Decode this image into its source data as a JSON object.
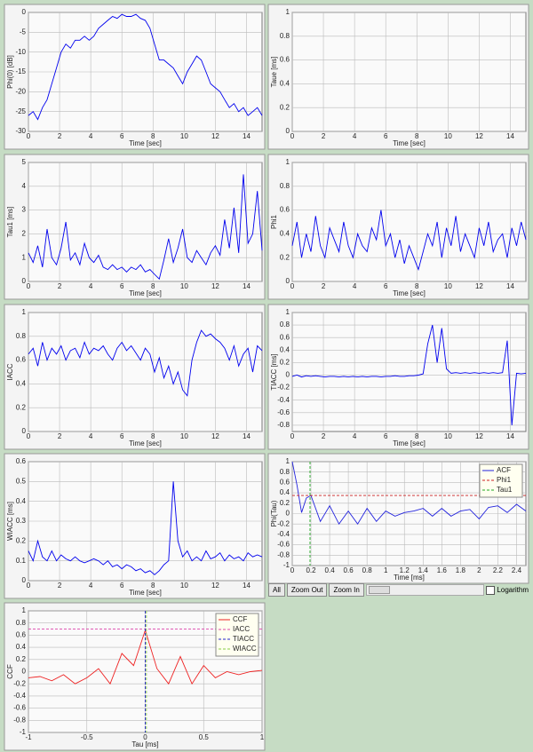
{
  "chart_data": [
    {
      "type": "line",
      "ylabel": "Phi(0) [dB]",
      "xlabel": "Time [sec]",
      "color": "#0000ee",
      "x": [
        0,
        0.3,
        0.6,
        0.9,
        1.2,
        1.5,
        1.8,
        2.1,
        2.4,
        2.7,
        3,
        3.3,
        3.6,
        3.9,
        4.2,
        4.5,
        4.8,
        5.1,
        5.4,
        5.7,
        6,
        6.3,
        6.6,
        6.9,
        7.2,
        7.5,
        7.8,
        8.1,
        8.4,
        8.7,
        9,
        9.3,
        9.6,
        9.9,
        10.2,
        10.5,
        10.8,
        11.1,
        11.4,
        11.7,
        12,
        12.3,
        12.6,
        12.9,
        13.2,
        13.5,
        13.8,
        14.1,
        14.4,
        14.7,
        15
      ],
      "values": [
        -26,
        -25,
        -27,
        -24,
        -22,
        -18,
        -14,
        -10,
        -8,
        -9,
        -7,
        -7,
        -6,
        -7,
        -6,
        -4,
        -3,
        -2,
        -1,
        -1.5,
        -0.5,
        -1,
        -1,
        -0.5,
        -1.5,
        -2,
        -4,
        -8,
        -12,
        -12,
        -13,
        -14,
        -16,
        -18,
        -15,
        -13,
        -11,
        -12,
        -15,
        -18,
        -19,
        -20,
        -22,
        -24,
        -23,
        -25,
        -24,
        -26,
        -25,
        -24,
        -26
      ],
      "xlim": [
        0,
        15
      ],
      "xticks": [
        0,
        2,
        4,
        6,
        8,
        10,
        12,
        14
      ],
      "ylim": [
        -30,
        0
      ],
      "yticks": [
        -30,
        -25,
        -20,
        -15,
        -10,
        -5,
        0
      ],
      "grid": true
    },
    {
      "type": "line",
      "ylabel": "Taue [ms]",
      "xlabel": "Time [sec]",
      "color": "#0000ee",
      "xlim": [
        0,
        15
      ],
      "xticks": [
        0,
        2,
        4,
        6,
        8,
        10,
        12,
        14
      ],
      "ylim": [
        0,
        1
      ],
      "yticks": [
        0,
        0.2,
        0.4,
        0.6,
        0.8,
        1
      ],
      "grid": true
    },
    {
      "type": "line",
      "ylabel": "Tau1 [ms]",
      "xlabel": "Time [sec]",
      "color": "#0000ee",
      "x": [
        0,
        0.3,
        0.6,
        0.9,
        1.2,
        1.5,
        1.8,
        2.1,
        2.4,
        2.7,
        3,
        3.3,
        3.6,
        3.9,
        4.2,
        4.5,
        4.8,
        5.1,
        5.4,
        5.7,
        6,
        6.3,
        6.6,
        6.9,
        7.2,
        7.5,
        7.8,
        8.1,
        8.4,
        8.7,
        9,
        9.3,
        9.6,
        9.9,
        10.2,
        10.5,
        10.8,
        11.1,
        11.4,
        11.7,
        12,
        12.3,
        12.6,
        12.9,
        13.2,
        13.5,
        13.8,
        14.1,
        14.4,
        14.7,
        15
      ],
      "values": [
        1.2,
        0.8,
        1.5,
        0.6,
        2.2,
        1.0,
        0.7,
        1.4,
        2.5,
        0.9,
        1.2,
        0.7,
        1.6,
        1.0,
        0.8,
        1.1,
        0.6,
        0.5,
        0.7,
        0.5,
        0.6,
        0.4,
        0.6,
        0.5,
        0.7,
        0.4,
        0.5,
        0.3,
        0.1,
        0.9,
        1.8,
        0.8,
        1.4,
        2.2,
        1.0,
        0.8,
        1.3,
        1.0,
        0.7,
        1.2,
        1.5,
        1.1,
        2.6,
        1.4,
        3.1,
        1.2,
        4.5,
        1.6,
        2.0,
        3.8,
        1.3
      ],
      "xlim": [
        0,
        15
      ],
      "xticks": [
        0,
        2,
        4,
        6,
        8,
        10,
        12,
        14
      ],
      "ylim": [
        0,
        5
      ],
      "yticks": [
        0,
        1,
        2,
        3,
        4,
        5
      ],
      "grid": true
    },
    {
      "type": "line",
      "ylabel": "Phi1",
      "xlabel": "Time [sec]",
      "color": "#0000ee",
      "x": [
        0,
        0.3,
        0.6,
        0.9,
        1.2,
        1.5,
        1.8,
        2.1,
        2.4,
        2.7,
        3,
        3.3,
        3.6,
        3.9,
        4.2,
        4.5,
        4.8,
        5.1,
        5.4,
        5.7,
        6,
        6.3,
        6.6,
        6.9,
        7.2,
        7.5,
        7.8,
        8.1,
        8.4,
        8.7,
        9,
        9.3,
        9.6,
        9.9,
        10.2,
        10.5,
        10.8,
        11.1,
        11.4,
        11.7,
        12,
        12.3,
        12.6,
        12.9,
        13.2,
        13.5,
        13.8,
        14.1,
        14.4,
        14.7,
        15
      ],
      "values": [
        0.3,
        0.5,
        0.2,
        0.4,
        0.25,
        0.55,
        0.3,
        0.2,
        0.45,
        0.35,
        0.25,
        0.5,
        0.3,
        0.2,
        0.4,
        0.3,
        0.25,
        0.45,
        0.35,
        0.6,
        0.3,
        0.4,
        0.2,
        0.35,
        0.15,
        0.3,
        0.2,
        0.1,
        0.25,
        0.4,
        0.3,
        0.5,
        0.2,
        0.45,
        0.3,
        0.55,
        0.25,
        0.4,
        0.3,
        0.2,
        0.45,
        0.3,
        0.5,
        0.25,
        0.35,
        0.4,
        0.2,
        0.45,
        0.3,
        0.5,
        0.35
      ],
      "xlim": [
        0,
        15
      ],
      "xticks": [
        0,
        2,
        4,
        6,
        8,
        10,
        12,
        14
      ],
      "ylim": [
        0,
        1
      ],
      "yticks": [
        0,
        0.2,
        0.4,
        0.6,
        0.8,
        1
      ],
      "grid": true
    },
    {
      "type": "line",
      "ylabel": "IACC",
      "xlabel": "Time [sec]",
      "color": "#0000ee",
      "x": [
        0,
        0.3,
        0.6,
        0.9,
        1.2,
        1.5,
        1.8,
        2.1,
        2.4,
        2.7,
        3,
        3.3,
        3.6,
        3.9,
        4.2,
        4.5,
        4.8,
        5.1,
        5.4,
        5.7,
        6,
        6.3,
        6.6,
        6.9,
        7.2,
        7.5,
        7.8,
        8.1,
        8.4,
        8.7,
        9,
        9.3,
        9.6,
        9.9,
        10.2,
        10.5,
        10.8,
        11.1,
        11.4,
        11.7,
        12,
        12.3,
        12.6,
        12.9,
        13.2,
        13.5,
        13.8,
        14.1,
        14.4,
        14.7,
        15
      ],
      "values": [
        0.65,
        0.7,
        0.55,
        0.75,
        0.6,
        0.7,
        0.65,
        0.72,
        0.6,
        0.68,
        0.7,
        0.62,
        0.75,
        0.65,
        0.7,
        0.68,
        0.72,
        0.65,
        0.6,
        0.7,
        0.75,
        0.68,
        0.72,
        0.66,
        0.6,
        0.7,
        0.65,
        0.5,
        0.62,
        0.45,
        0.55,
        0.4,
        0.5,
        0.35,
        0.3,
        0.6,
        0.75,
        0.85,
        0.8,
        0.82,
        0.78,
        0.75,
        0.7,
        0.6,
        0.72,
        0.55,
        0.65,
        0.7,
        0.5,
        0.72,
        0.68
      ],
      "xlim": [
        0,
        15
      ],
      "xticks": [
        0,
        2,
        4,
        6,
        8,
        10,
        12,
        14
      ],
      "ylim": [
        0,
        1
      ],
      "yticks": [
        0,
        0.2,
        0.4,
        0.6,
        0.8,
        1
      ],
      "grid": true
    },
    {
      "type": "line",
      "ylabel": "TIACC [ms]",
      "xlabel": "Time [sec]",
      "color": "#0000ee",
      "x": [
        0,
        0.3,
        0.6,
        0.9,
        1.2,
        1.5,
        1.8,
        2.1,
        2.4,
        2.7,
        3,
        3.3,
        3.6,
        3.9,
        4.2,
        4.5,
        4.8,
        5.1,
        5.4,
        5.7,
        6,
        6.3,
        6.6,
        6.9,
        7.2,
        7.5,
        7.8,
        8.1,
        8.4,
        8.7,
        9,
        9.3,
        9.6,
        9.9,
        10.2,
        10.5,
        10.8,
        11.1,
        11.4,
        11.7,
        12,
        12.3,
        12.6,
        12.9,
        13.2,
        13.5,
        13.8,
        14.1,
        14.4,
        14.7,
        15
      ],
      "values": [
        -0.02,
        0.0,
        -0.03,
        -0.01,
        -0.02,
        -0.01,
        -0.02,
        -0.03,
        -0.02,
        -0.02,
        -0.03,
        -0.02,
        -0.03,
        -0.02,
        -0.03,
        -0.02,
        -0.03,
        -0.02,
        -0.02,
        -0.03,
        -0.02,
        -0.02,
        -0.01,
        -0.02,
        -0.02,
        -0.01,
        -0.01,
        0.0,
        0.02,
        0.5,
        0.8,
        0.2,
        0.75,
        0.1,
        0.03,
        0.04,
        0.03,
        0.04,
        0.03,
        0.04,
        0.03,
        0.04,
        0.03,
        0.04,
        0.03,
        0.04,
        0.55,
        -0.8,
        0.03,
        0.02,
        0.03
      ],
      "xlim": [
        0,
        15
      ],
      "xticks": [
        0,
        2,
        4,
        6,
        8,
        10,
        12,
        14
      ],
      "ylim": [
        -0.9,
        1
      ],
      "yticks": [
        -0.8,
        -0.6,
        -0.4,
        -0.2,
        0,
        0.2,
        0.4,
        0.6,
        0.8,
        1
      ],
      "grid": true
    },
    {
      "type": "line",
      "ylabel": "WIACC [ms]",
      "xlabel": "Time [sec]",
      "color": "#0000ee",
      "x": [
        0,
        0.3,
        0.6,
        0.9,
        1.2,
        1.5,
        1.8,
        2.1,
        2.4,
        2.7,
        3,
        3.3,
        3.6,
        3.9,
        4.2,
        4.5,
        4.8,
        5.1,
        5.4,
        5.7,
        6,
        6.3,
        6.6,
        6.9,
        7.2,
        7.5,
        7.8,
        8.1,
        8.4,
        8.7,
        9,
        9.3,
        9.6,
        9.9,
        10.2,
        10.5,
        10.8,
        11.1,
        11.4,
        11.7,
        12,
        12.3,
        12.6,
        12.9,
        13.2,
        13.5,
        13.8,
        14.1,
        14.4,
        14.7,
        15
      ],
      "values": [
        0.15,
        0.1,
        0.2,
        0.12,
        0.1,
        0.15,
        0.1,
        0.13,
        0.11,
        0.1,
        0.12,
        0.1,
        0.09,
        0.1,
        0.11,
        0.1,
        0.08,
        0.1,
        0.07,
        0.08,
        0.06,
        0.08,
        0.07,
        0.05,
        0.06,
        0.04,
        0.05,
        0.03,
        0.05,
        0.08,
        0.1,
        0.5,
        0.2,
        0.12,
        0.15,
        0.1,
        0.12,
        0.1,
        0.15,
        0.11,
        0.12,
        0.14,
        0.1,
        0.13,
        0.11,
        0.12,
        0.1,
        0.14,
        0.12,
        0.13,
        0.12
      ],
      "xlim": [
        0,
        15
      ],
      "xticks": [
        0,
        2,
        4,
        6,
        8,
        10,
        12,
        14
      ],
      "ylim": [
        0,
        0.6
      ],
      "yticks": [
        0,
        0.1,
        0.2,
        0.3,
        0.4,
        0.5,
        0.6
      ],
      "grid": true
    },
    {
      "type": "line",
      "ylabel": "Phi(Tau)",
      "xlabel": "Time [ms]",
      "x": [
        0,
        0.05,
        0.1,
        0.15,
        0.2,
        0.25,
        0.3,
        0.4,
        0.5,
        0.6,
        0.7,
        0.8,
        0.9,
        1.0,
        1.1,
        1.2,
        1.3,
        1.4,
        1.5,
        1.6,
        1.7,
        1.8,
        1.9,
        2.0,
        2.1,
        2.2,
        2.3,
        2.4,
        2.5
      ],
      "series": [
        {
          "name": "ACF",
          "color": "#2222dd",
          "values": [
            1,
            0.55,
            0.02,
            0.3,
            0.35,
            0.1,
            -0.15,
            0.15,
            -0.2,
            0.05,
            -0.2,
            0.1,
            -0.15,
            0.05,
            -0.05,
            0.02,
            0.05,
            0.1,
            -0.05,
            0.1,
            -0.05,
            0.05,
            0.08,
            -0.1,
            0.12,
            0.15,
            0.02,
            0.18,
            0.05
          ]
        }
      ],
      "reference_lines": [
        {
          "name": "Phi1",
          "color": "#cc2222",
          "orientation": "horizontal",
          "value": 0.35
        },
        {
          "name": "Tau1",
          "color": "#22aa22",
          "orientation": "vertical",
          "value": 0.19
        }
      ],
      "xlim": [
        0,
        2.5
      ],
      "xticks": [
        0,
        0.2,
        0.4,
        0.6,
        0.8,
        1,
        1.2,
        1.4,
        1.6,
        1.8,
        2,
        2.2,
        2.4
      ],
      "ylim": [
        -1,
        1
      ],
      "yticks": [
        -1,
        -0.8,
        -0.6,
        -0.4,
        -0.2,
        0,
        0.2,
        0.4,
        0.6,
        0.8,
        1
      ],
      "grid": true
    },
    {
      "type": "line",
      "ylabel": "CCF",
      "xlabel": "Tau [ms]",
      "x": [
        -1,
        -0.9,
        -0.8,
        -0.7,
        -0.6,
        -0.5,
        -0.4,
        -0.3,
        -0.2,
        -0.1,
        0,
        0.1,
        0.2,
        0.3,
        0.4,
        0.5,
        0.6,
        0.7,
        0.8,
        0.9,
        1
      ],
      "series": [
        {
          "name": "CCF",
          "color": "#ee2222",
          "values": [
            -0.1,
            -0.08,
            -0.15,
            -0.05,
            -0.2,
            -0.1,
            0.05,
            -0.2,
            0.3,
            0.1,
            0.68,
            0.05,
            -0.2,
            0.25,
            -0.2,
            0.1,
            -0.1,
            0.0,
            -0.05,
            0.0,
            0.02
          ]
        }
      ],
      "reference_lines": [
        {
          "name": "IACC",
          "color": "#dd44aa",
          "orientation": "horizontal",
          "value": 0.7
        },
        {
          "name": "TIACC",
          "color": "#2222cc",
          "orientation": "vertical",
          "value": 0
        },
        {
          "name": "WIACC",
          "color": "#88cc44",
          "orientation": "vertical",
          "value": 0.01
        }
      ],
      "xlim": [
        -1,
        1
      ],
      "xticks": [
        -1,
        -0.5,
        0,
        0.5,
        1
      ],
      "ylim": [
        -1,
        1
      ],
      "yticks": [
        -1,
        -0.8,
        -0.6,
        -0.4,
        -0.2,
        0,
        0.2,
        0.4,
        0.6,
        0.8,
        1
      ],
      "grid": true
    }
  ],
  "toolbar": {
    "buttons": [
      "All",
      "Zoom Out",
      "Zoom In"
    ],
    "checkbox_label": "Logarithm"
  }
}
